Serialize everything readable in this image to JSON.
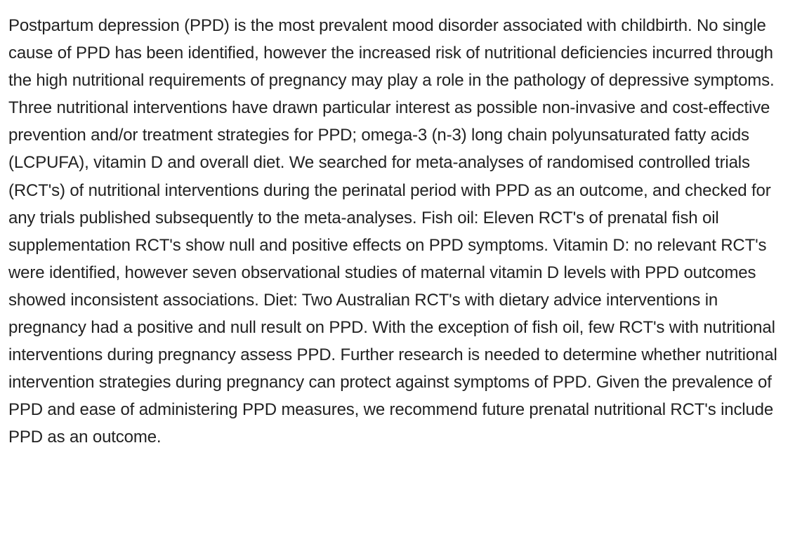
{
  "abstract": {
    "text": "Postpartum depression (PPD) is the most prevalent mood disorder associated with childbirth. No single cause of PPD has been identified, however the increased risk of nutritional deficiencies incurred through the high nutritional requirements of pregnancy may play a role in the pathology of depressive symptoms. Three nutritional interventions have drawn particular interest as possible non-invasive and cost-effective prevention and/or treatment strategies for PPD; omega-3 (n-3) long chain polyunsaturated fatty acids (LCPUFA), vitamin D and overall diet. We searched for meta-analyses of randomised controlled trials (RCT's) of nutritional interventions during the perinatal period with PPD as an outcome, and checked for any trials published subsequently to the meta-analyses. Fish oil: Eleven RCT's of prenatal fish oil supplementation RCT's show null and positive effects on PPD symptoms. Vitamin D: no relevant RCT's were identified, however seven observational studies of maternal vitamin D levels with PPD outcomes showed inconsistent associations. Diet: Two Australian RCT's with dietary advice interventions in pregnancy had a positive and null result on PPD. With the exception of fish oil, few RCT's with nutritional interventions during pregnancy assess PPD. Further research is needed to determine whether nutritional intervention strategies during pregnancy can protect against symptoms of PPD. Given the prevalence of PPD and ease of administering PPD measures, we recommend future prenatal nutritional RCT's include PPD as an outcome."
  }
}
